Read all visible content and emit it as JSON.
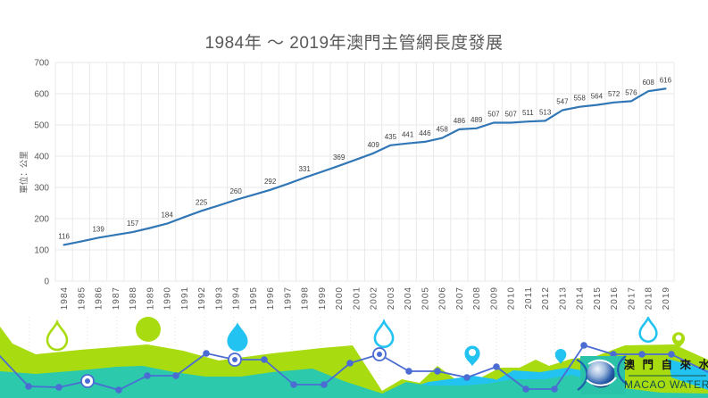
{
  "title": "1984年 ～ 2019年澳門主管網長度發展",
  "chart_data": {
    "type": "line",
    "title": "1984年 ～ 2019年澳門主管網長度發展",
    "ylabel": "單位：公里",
    "xlabel": "",
    "ylim": [
      0,
      700
    ],
    "y_ticks": [
      0,
      100,
      200,
      300,
      400,
      500,
      600,
      700
    ],
    "grid": true,
    "legend": "none",
    "years": [
      1984,
      1985,
      1986,
      1987,
      1988,
      1989,
      1990,
      1991,
      1992,
      1993,
      1994,
      1995,
      1996,
      1997,
      1998,
      1999,
      2000,
      2001,
      2002,
      2003,
      2004,
      2005,
      2006,
      2007,
      2008,
      2009,
      2010,
      2011,
      2012,
      2013,
      2014,
      2015,
      2016,
      2017,
      2018,
      2019
    ],
    "values": [
      116,
      127,
      139,
      148,
      157,
      170,
      184,
      205,
      225,
      242,
      260,
      276,
      292,
      311,
      331,
      350,
      369,
      389,
      409,
      435,
      441,
      446,
      458,
      486,
      489,
      507,
      507,
      511,
      513,
      547,
      558,
      564,
      572,
      576,
      608,
      616
    ],
    "point_labels": [
      116,
      null,
      139,
      null,
      157,
      null,
      184,
      null,
      225,
      null,
      260,
      null,
      292,
      null,
      331,
      null,
      369,
      null,
      409,
      435,
      441,
      446,
      458,
      486,
      489,
      507,
      507,
      511,
      513,
      547,
      558,
      564,
      572,
      576,
      608,
      616
    ]
  },
  "logo": {
    "chinese": "澳 門 自 來 水",
    "english": "MACAO WATER"
  },
  "colors": {
    "chart_line": "#3176b5",
    "grid_line": "#e9e9e9",
    "axis_text": "#595959",
    "data_label_text": "#3f3f3f",
    "title_text": "#5a5a5a",
    "footer_lime": "#a8dc10",
    "footer_teal": "#2cc9ad",
    "footer_cyan": "#22c3f0",
    "footer_line": "#4a6cd3",
    "footer_grid": "#e4e4e4",
    "logo_text_cn": "#151515",
    "logo_text_en": "#14504a",
    "logo_swirl": "#1f5fae",
    "logo_square": "#2ac3a9"
  }
}
